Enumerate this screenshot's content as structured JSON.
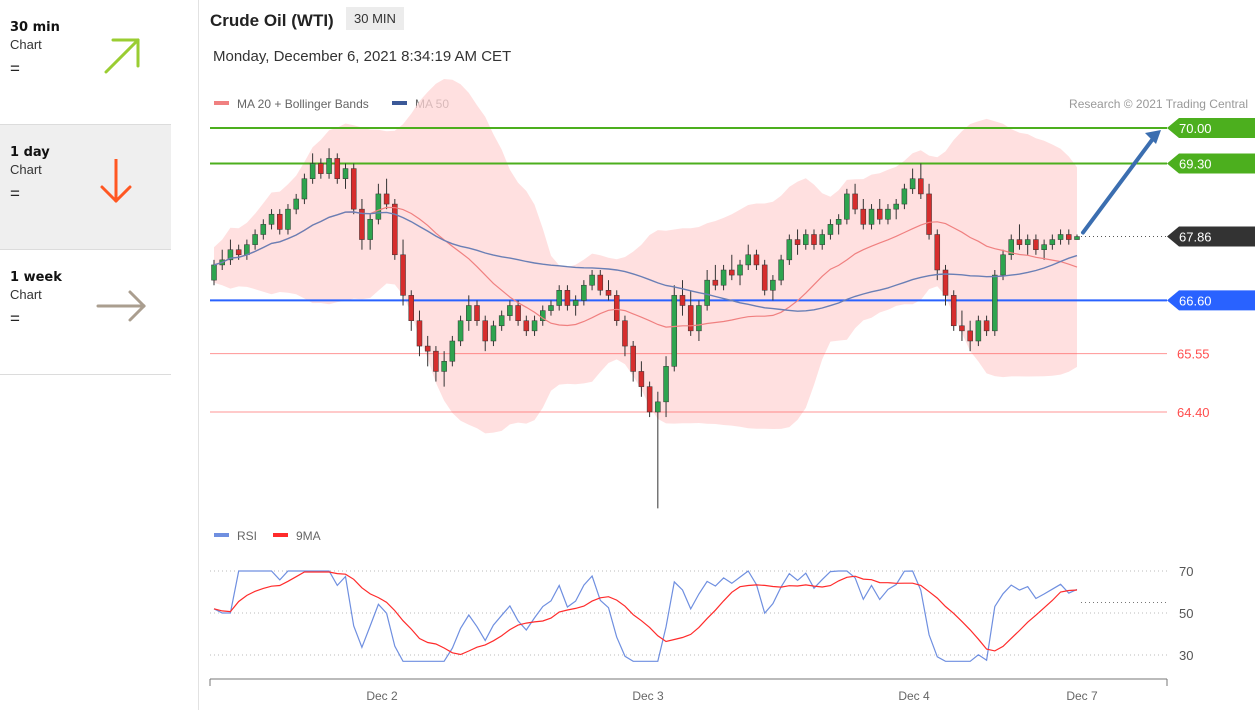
{
  "sidebar": {
    "items": [
      {
        "period": "30 min",
        "sub": "Chart",
        "eq": "=",
        "arrow": "up-right",
        "color": "#9acd32"
      },
      {
        "period": "1 day",
        "sub": "Chart",
        "eq": "=",
        "arrow": "down",
        "color": "#ff5722"
      },
      {
        "period": "1 week",
        "sub": "Chart",
        "eq": "=",
        "arrow": "right",
        "color": "#aa9e8f"
      }
    ]
  },
  "header": {
    "title": "Crude Oil (WTI)",
    "timeframe": "30 MIN",
    "date": "Monday, December 6, 2021 8:34:19 AM CET"
  },
  "chart_data": [
    {
      "type": "candlestick",
      "legend": [
        {
          "name": "MA 20 + Bollinger Bands",
          "color": "#f08080"
        },
        {
          "name": "MA 50",
          "color": "#3b5998"
        }
      ],
      "copyright": "Research © 2021 Trading Central",
      "x_ticks": [
        "Dec 2",
        "Dec 3",
        "Dec 4",
        "Dec 7"
      ],
      "levels": [
        {
          "value": 70.0,
          "label": "70.00",
          "color": "#4caf1e",
          "kind": "resistance"
        },
        {
          "value": 69.3,
          "label": "69.30",
          "color": "#4caf1e",
          "kind": "resistance"
        },
        {
          "value": 67.86,
          "label": "67.86",
          "color": "#333333",
          "kind": "last"
        },
        {
          "value": 66.6,
          "label": "66.60",
          "color": "#2962ff",
          "kind": "pivot"
        },
        {
          "value": 65.55,
          "label": "65.55",
          "color": "#ff4d4d",
          "kind": "support"
        },
        {
          "value": 64.4,
          "label": "64.40",
          "color": "#ff4d4d",
          "kind": "support"
        }
      ],
      "target_arrow": {
        "from": 67.86,
        "to": 70.0,
        "color": "#3b6eb0"
      },
      "candles": [
        [
          67.0,
          67.4,
          66.9,
          67.3
        ],
        [
          67.3,
          67.6,
          67.2,
          67.4
        ],
        [
          67.4,
          67.8,
          67.3,
          67.6
        ],
        [
          67.6,
          67.7,
          67.4,
          67.5
        ],
        [
          67.5,
          67.8,
          67.4,
          67.7
        ],
        [
          67.7,
          68.0,
          67.6,
          67.9
        ],
        [
          67.9,
          68.2,
          67.8,
          68.1
        ],
        [
          68.1,
          68.4,
          68.0,
          68.3
        ],
        [
          68.3,
          68.4,
          67.9,
          68.0
        ],
        [
          68.0,
          68.5,
          67.9,
          68.4
        ],
        [
          68.4,
          68.7,
          68.3,
          68.6
        ],
        [
          68.6,
          69.1,
          68.5,
          69.0
        ],
        [
          69.0,
          69.5,
          68.9,
          69.3
        ],
        [
          69.3,
          69.4,
          69.0,
          69.1
        ],
        [
          69.1,
          69.6,
          69.0,
          69.4
        ],
        [
          69.4,
          69.5,
          68.9,
          69.0
        ],
        [
          69.0,
          69.3,
          68.8,
          69.2
        ],
        [
          69.2,
          69.3,
          68.3,
          68.4
        ],
        [
          68.4,
          68.6,
          67.6,
          67.8
        ],
        [
          67.8,
          68.3,
          67.6,
          68.2
        ],
        [
          68.2,
          68.9,
          68.1,
          68.7
        ],
        [
          68.7,
          69.0,
          68.4,
          68.5
        ],
        [
          68.5,
          68.6,
          67.4,
          67.5
        ],
        [
          67.5,
          67.8,
          66.5,
          66.7
        ],
        [
          66.7,
          66.8,
          66.0,
          66.2
        ],
        [
          66.2,
          66.4,
          65.5,
          65.7
        ],
        [
          65.7,
          65.9,
          65.3,
          65.6
        ],
        [
          65.6,
          65.7,
          65.0,
          65.2
        ],
        [
          65.2,
          65.6,
          64.9,
          65.4
        ],
        [
          65.4,
          65.9,
          65.3,
          65.8
        ],
        [
          65.8,
          66.3,
          65.7,
          66.2
        ],
        [
          66.2,
          66.7,
          66.0,
          66.5
        ],
        [
          66.5,
          66.6,
          66.1,
          66.2
        ],
        [
          66.2,
          66.3,
          65.6,
          65.8
        ],
        [
          65.8,
          66.2,
          65.7,
          66.1
        ],
        [
          66.1,
          66.4,
          66.0,
          66.3
        ],
        [
          66.3,
          66.6,
          66.2,
          66.5
        ],
        [
          66.5,
          66.6,
          66.1,
          66.2
        ],
        [
          66.2,
          66.3,
          65.9,
          66.0
        ],
        [
          66.0,
          66.3,
          65.9,
          66.2
        ],
        [
          66.2,
          66.5,
          66.1,
          66.4
        ],
        [
          66.4,
          66.6,
          66.3,
          66.5
        ],
        [
          66.5,
          66.9,
          66.4,
          66.8
        ],
        [
          66.8,
          66.9,
          66.4,
          66.5
        ],
        [
          66.5,
          66.7,
          66.3,
          66.6
        ],
        [
          66.6,
          67.0,
          66.5,
          66.9
        ],
        [
          66.9,
          67.2,
          66.8,
          67.1
        ],
        [
          67.1,
          67.2,
          66.7,
          66.8
        ],
        [
          66.8,
          67.0,
          66.6,
          66.7
        ],
        [
          66.7,
          66.8,
          66.1,
          66.2
        ],
        [
          66.2,
          66.3,
          65.5,
          65.7
        ],
        [
          65.7,
          65.8,
          65.0,
          65.2
        ],
        [
          65.2,
          65.4,
          64.7,
          64.9
        ],
        [
          64.9,
          65.0,
          64.3,
          64.4
        ],
        [
          64.4,
          64.8,
          62.5,
          64.6
        ],
        [
          64.6,
          65.5,
          64.3,
          65.3
        ],
        [
          65.3,
          66.9,
          65.2,
          66.7
        ],
        [
          66.7,
          67.0,
          66.3,
          66.5
        ],
        [
          66.5,
          66.8,
          65.9,
          66.0
        ],
        [
          66.0,
          66.6,
          65.8,
          66.5
        ],
        [
          66.5,
          67.2,
          66.4,
          67.0
        ],
        [
          67.0,
          67.3,
          66.8,
          66.9
        ],
        [
          66.9,
          67.3,
          66.8,
          67.2
        ],
        [
          67.2,
          67.5,
          67.0,
          67.1
        ],
        [
          67.1,
          67.4,
          66.9,
          67.3
        ],
        [
          67.3,
          67.7,
          67.2,
          67.5
        ],
        [
          67.5,
          67.6,
          67.2,
          67.3
        ],
        [
          67.3,
          67.4,
          66.7,
          66.8
        ],
        [
          66.8,
          67.1,
          66.6,
          67.0
        ],
        [
          67.0,
          67.5,
          66.9,
          67.4
        ],
        [
          67.4,
          67.9,
          67.3,
          67.8
        ],
        [
          67.8,
          68.0,
          67.5,
          67.7
        ],
        [
          67.7,
          68.0,
          67.6,
          67.9
        ],
        [
          67.9,
          68.0,
          67.6,
          67.7
        ],
        [
          67.7,
          68.0,
          67.6,
          67.9
        ],
        [
          67.9,
          68.2,
          67.8,
          68.1
        ],
        [
          68.1,
          68.3,
          67.9,
          68.2
        ],
        [
          68.2,
          68.8,
          68.1,
          68.7
        ],
        [
          68.7,
          68.9,
          68.3,
          68.4
        ],
        [
          68.4,
          68.6,
          68.0,
          68.1
        ],
        [
          68.1,
          68.5,
          68.0,
          68.4
        ],
        [
          68.4,
          68.6,
          68.1,
          68.2
        ],
        [
          68.2,
          68.5,
          68.1,
          68.4
        ],
        [
          68.4,
          68.6,
          68.2,
          68.5
        ],
        [
          68.5,
          68.9,
          68.4,
          68.8
        ],
        [
          68.8,
          69.2,
          68.7,
          69.0
        ],
        [
          69.0,
          69.3,
          68.6,
          68.7
        ],
        [
          68.7,
          68.9,
          67.8,
          67.9
        ],
        [
          67.9,
          68.0,
          67.0,
          67.2
        ],
        [
          67.2,
          67.3,
          66.5,
          66.7
        ],
        [
          66.7,
          66.8,
          66.0,
          66.1
        ],
        [
          66.1,
          66.4,
          65.8,
          66.0
        ],
        [
          66.0,
          66.2,
          65.6,
          65.8
        ],
        [
          65.8,
          66.3,
          65.7,
          66.2
        ],
        [
          66.2,
          66.3,
          65.9,
          66.0
        ],
        [
          66.0,
          67.2,
          65.9,
          67.1
        ],
        [
          67.1,
          67.6,
          67.0,
          67.5
        ],
        [
          67.5,
          67.9,
          67.4,
          67.8
        ],
        [
          67.8,
          68.1,
          67.6,
          67.7
        ],
        [
          67.7,
          67.9,
          67.5,
          67.8
        ],
        [
          67.8,
          67.9,
          67.5,
          67.6
        ],
        [
          67.6,
          67.8,
          67.4,
          67.7
        ],
        [
          67.7,
          67.9,
          67.6,
          67.8
        ],
        [
          67.8,
          68.0,
          67.7,
          67.9
        ],
        [
          67.9,
          68.0,
          67.7,
          67.8
        ],
        [
          67.8,
          67.9,
          67.8,
          67.86
        ]
      ]
    },
    {
      "type": "line",
      "legend": [
        {
          "name": "RSI",
          "color": "#6f8fe0"
        },
        {
          "name": "9MA",
          "color": "#ff2b2b"
        }
      ],
      "y_ticks": [
        70,
        50,
        30
      ],
      "ylim": [
        25,
        75
      ],
      "last_value": 55
    }
  ]
}
